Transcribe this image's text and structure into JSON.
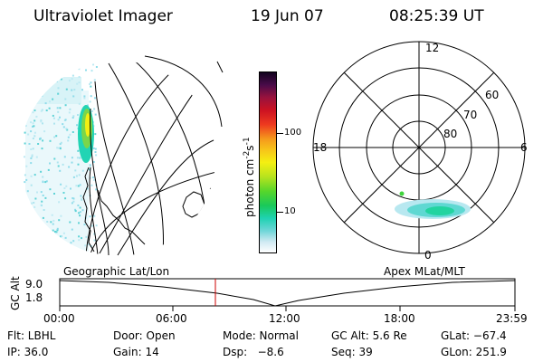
{
  "header": {
    "instrument": "Ultraviolet Imager",
    "date": "19 Jun 07",
    "time": "08:25:39 UT"
  },
  "colorbar": {
    "label_main": "photon cm",
    "label_exp1": "-2",
    "label_mid": "s",
    "label_exp2": "-1",
    "ticks": [
      "100",
      "10"
    ]
  },
  "polar_plot": {
    "mlt_labels": {
      "top": "12",
      "left": "18",
      "right": "6",
      "bottom": "0"
    },
    "mlat_labels": [
      "60",
      "70",
      "80"
    ]
  },
  "timeline": {
    "left_title": "Geographic Lat/Lon",
    "right_title": "Apex MLat/MLT",
    "y_axis_label": "GC Alt",
    "y_ticks": [
      "9.0",
      "1.8"
    ],
    "x_ticks": [
      "00:00",
      "06:00",
      "12:00",
      "18:00",
      "23:59"
    ]
  },
  "footer": {
    "row1": {
      "filter": "Flt: LBHL",
      "door": "Door: Open",
      "mode": "Mode: Normal",
      "gc_alt": "GC Alt: 5.6 Re",
      "glat": "GLat: −67.4"
    },
    "row2": {
      "ip": "IP: 36.0",
      "gain": "Gain: 14",
      "dsp": "Dsp:   −8.6",
      "seq": "Seq: 39",
      "glon": "GLon: 251.9"
    }
  },
  "colors": {
    "accent_marker": "#cc0000",
    "aurora_dim": "#7ed8e6",
    "aurora_mid": "#22d4b4",
    "aurora_bright": "#3fd43c",
    "aurora_peak": "#f2ef12"
  }
}
